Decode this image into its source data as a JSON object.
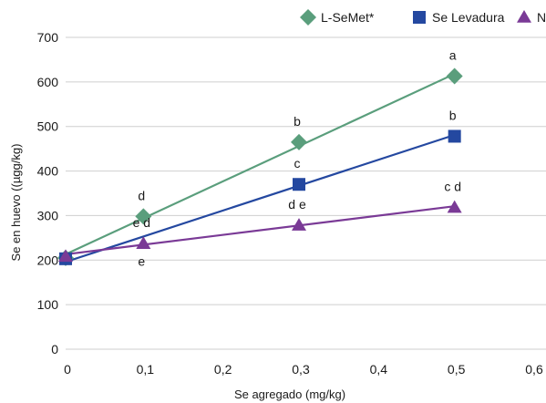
{
  "chart_data": {
    "type": "line",
    "title": "",
    "xlabel": "Se agregado (mg/kg)",
    "ylabel": "Se en huevo ((µgg/kg)",
    "xlim": [
      0,
      0.6
    ],
    "ylim": [
      0,
      700
    ],
    "x_ticks": [
      "0",
      "0,1",
      "0,2",
      "0,3",
      "0,4",
      "0,5",
      "0,6"
    ],
    "y_ticks": [
      "0",
      "100",
      "200",
      "300",
      "400",
      "500",
      "600",
      "700"
    ],
    "grid": "horizontal",
    "legend_position": "top-right",
    "series": [
      {
        "name": "L-SeMet*",
        "color": "#5a9e7c",
        "marker": "diamond",
        "x": [
          0,
          0.1,
          0.3,
          0.5
        ],
        "y": [
          205,
          298,
          465,
          613
        ],
        "labels": [
          "",
          "d",
          "b",
          "a"
        ],
        "fit": [
          [
            0,
            213
          ],
          [
            0.5,
            618
          ]
        ]
      },
      {
        "name": "Se Levadura",
        "color": "#2448a0",
        "marker": "square",
        "x": [
          0,
          0.3,
          0.5
        ],
        "y": [
          203,
          370,
          478
        ],
        "labels": [
          "",
          "c",
          "b"
        ],
        "fit": [
          [
            0,
            196
          ],
          [
            0.5,
            481
          ]
        ]
      },
      {
        "name": "NaSe",
        "color": "#7a3a96",
        "marker": "triangle",
        "x": [
          0,
          0.1,
          0.3,
          0.5
        ],
        "y": [
          208,
          237,
          278,
          318
        ],
        "labels": [
          "",
          "e d",
          "d e",
          "c d"
        ],
        "fit": [
          [
            0,
            213
          ],
          [
            0.5,
            321
          ]
        ]
      }
    ],
    "annotations": [
      {
        "text": "e",
        "x": 0.1,
        "y": 200
      }
    ]
  }
}
